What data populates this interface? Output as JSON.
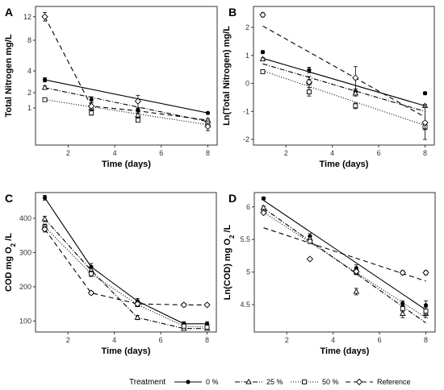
{
  "legend": {
    "title": "Treatment",
    "entries": [
      {
        "key": "0",
        "label": "0 %"
      },
      {
        "key": "25",
        "label": "25 %"
      },
      {
        "key": "50",
        "label": "50 %"
      },
      {
        "key": "ref",
        "label": "Reference"
      }
    ]
  },
  "styles": {
    "0": {
      "dash": "",
      "marker": "circle"
    },
    "25": {
      "dash": "6,2,1,2",
      "marker": "triangle"
    },
    "50": {
      "dash": "1,2",
      "marker": "square"
    },
    "ref": {
      "dash": "6,4",
      "marker": "diamond"
    }
  },
  "chart_data": [
    {
      "panel": "A",
      "type": "line",
      "xlabel": "Time (days)",
      "ylabel": "Total Nitrogen mg/L",
      "ylabel_sub": "",
      "ylabel_after": "",
      "ylabel_scale": "sqrt",
      "x_ticks": [
        2,
        4,
        6,
        8
      ],
      "y_ticks": [
        1,
        2,
        4,
        8,
        12
      ],
      "xlim": [
        0.6,
        8.4
      ],
      "ylim": [
        0,
        14
      ],
      "series": [
        {
          "key": "0",
          "points": [
            [
              1,
              3.1,
              0.2
            ],
            [
              3,
              1.5,
              0.2
            ],
            [
              5,
              0.9,
              0.1
            ],
            [
              8,
              0.75,
              0.05
            ]
          ],
          "fit": [
            [
              1,
              3.1
            ],
            [
              8,
              0.75
            ]
          ]
        },
        {
          "key": "25",
          "points": [
            [
              1,
              2.4,
              0.15
            ],
            [
              3,
              1.0,
              0.1
            ],
            [
              5,
              0.65,
              0.1
            ],
            [
              8,
              0.45,
              0.05
            ]
          ],
          "fit": [
            [
              1,
              2.4
            ],
            [
              8,
              0.4
            ]
          ]
        },
        {
          "key": "50",
          "points": [
            [
              1,
              1.5,
              0.1
            ],
            [
              3,
              0.75,
              0.1
            ],
            [
              5,
              0.45,
              0.05
            ],
            [
              8,
              0.35,
              0.05
            ]
          ],
          "fit": [
            [
              1,
              1.5
            ],
            [
              8,
              0.3
            ]
          ]
        },
        {
          "key": "ref",
          "points": [
            [
              1,
              12,
              0.8
            ],
            [
              3,
              1.1,
              0.2
            ],
            [
              5,
              1.4,
              0.4
            ],
            [
              8,
              0.25,
              0.1
            ]
          ],
          "fit": [
            [
              1,
              12
            ],
            [
              3,
              1.1
            ],
            [
              5,
              0.85
            ],
            [
              8,
              0.45
            ]
          ]
        }
      ]
    },
    {
      "panel": "B",
      "type": "line",
      "xlabel": "Time (days)",
      "ylabel": "Ln(Total Nitrogen) mg/L",
      "ylabel_sub": "",
      "ylabel_after": "",
      "ylabel_scale": "linear",
      "x_ticks": [
        2,
        4,
        6,
        8
      ],
      "y_ticks": [
        -2,
        -1,
        0,
        1,
        2
      ],
      "xlim": [
        0.6,
        8.4
      ],
      "ylim": [
        -2.2,
        2.75
      ],
      "series": [
        {
          "key": "0",
          "points": [
            [
              1,
              1.12,
              0.05
            ],
            [
              3,
              0.48,
              0.1
            ],
            [
              5,
              -0.3,
              0.1
            ],
            [
              8,
              -0.35,
              0.05
            ]
          ],
          "fit": [
            [
              1,
              0.9
            ],
            [
              8,
              -0.8
            ]
          ]
        },
        {
          "key": "25",
          "points": [
            [
              1,
              0.87,
              0.05
            ],
            [
              3,
              0.05,
              0.1
            ],
            [
              5,
              -0.35,
              0.1
            ],
            [
              8,
              -0.8,
              0.05
            ]
          ],
          "fit": [
            [
              1,
              0.7
            ],
            [
              8,
              -1.0
            ]
          ]
        },
        {
          "key": "50",
          "points": [
            [
              1,
              0.42,
              0.05
            ],
            [
              3,
              -0.3,
              0.15
            ],
            [
              5,
              -0.8,
              0.1
            ],
            [
              8,
              -1.55,
              0.1
            ]
          ],
          "fit": [
            [
              1,
              0.45
            ],
            [
              8,
              -1.5
            ]
          ]
        },
        {
          "key": "ref",
          "points": [
            [
              1,
              2.45,
              0.07
            ],
            [
              3,
              0.05,
              0.2
            ],
            [
              5,
              0.2,
              0.4
            ],
            [
              8,
              -1.4,
              0.6
            ]
          ],
          "fit": [
            [
              1,
              2.05
            ],
            [
              8,
              -1.2
            ]
          ]
        }
      ]
    },
    {
      "panel": "C",
      "type": "line",
      "xlabel": "Time (days)",
      "ylabel": "COD mg O",
      "ylabel_sub": "2",
      "ylabel_after": "/L",
      "ylabel_scale": "linear",
      "x_ticks": [
        2,
        4,
        6,
        8
      ],
      "y_ticks": [
        100,
        200,
        300,
        400
      ],
      "xlim": [
        0.6,
        8.4
      ],
      "ylim": [
        68,
        475
      ],
      "series": [
        {
          "key": "0",
          "points": [
            [
              1,
              460,
              7
            ],
            [
              3,
              258,
              10
            ],
            [
              5,
              158,
              8
            ],
            [
              7,
              92,
              6
            ],
            [
              8,
              92,
              6
            ]
          ],
          "fit": [
            [
              1,
              460
            ],
            [
              3,
              258
            ],
            [
              5,
              158
            ],
            [
              7,
              92
            ],
            [
              8,
              92
            ]
          ]
        },
        {
          "key": "25",
          "points": [
            [
              1,
              398,
              8
            ],
            [
              3,
              248,
              10
            ],
            [
              5,
              110,
              6
            ],
            [
              7,
              78,
              5
            ],
            [
              8,
              78,
              5
            ]
          ],
          "fit": [
            [
              1,
              398
            ],
            [
              3,
              248
            ],
            [
              5,
              110
            ],
            [
              7,
              78
            ],
            [
              8,
              78
            ]
          ]
        },
        {
          "key": "50",
          "points": [
            [
              1,
              375,
              8
            ],
            [
              3,
              238,
              8
            ],
            [
              5,
              148,
              6
            ],
            [
              7,
              85,
              5
            ],
            [
              8,
              82,
              5
            ]
          ],
          "fit": [
            [
              1,
              375
            ],
            [
              3,
              238
            ],
            [
              5,
              148
            ],
            [
              7,
              85
            ],
            [
              8,
              82
            ]
          ]
        },
        {
          "key": "ref",
          "points": [
            [
              1,
              368,
              8
            ],
            [
              3,
              182,
              5
            ],
            [
              5,
              150,
              5
            ],
            [
              7,
              147,
              5
            ],
            [
              8,
              147,
              4
            ]
          ],
          "fit": [
            [
              1,
              368
            ],
            [
              3,
              182
            ],
            [
              5,
              150
            ],
            [
              7,
              147
            ],
            [
              8,
              147
            ]
          ]
        }
      ]
    },
    {
      "panel": "D",
      "type": "line",
      "xlabel": "Time (days)",
      "ylabel": "Ln(COD) mg O",
      "ylabel_sub": "2",
      "ylabel_after": "/L",
      "ylabel_scale": "linear",
      "x_ticks": [
        2,
        4,
        6,
        8
      ],
      "y_ticks": [
        4.5,
        5.0,
        5.5,
        6.0
      ],
      "xlim": [
        0.6,
        8.4
      ],
      "ylim": [
        4.08,
        6.22
      ],
      "series": [
        {
          "key": "0",
          "points": [
            [
              1,
              6.13,
              0.02
            ],
            [
              3,
              5.55,
              0.04
            ],
            [
              5,
              5.06,
              0.05
            ],
            [
              7,
              4.52,
              0.04
            ],
            [
              8,
              4.49,
              0.07
            ]
          ],
          "fit": [
            [
              1,
              6.1
            ],
            [
              8,
              4.42
            ]
          ]
        },
        {
          "key": "25",
          "points": [
            [
              1,
              5.99,
              0.02
            ],
            [
              3,
              5.51,
              0.04
            ],
            [
              5,
              4.7,
              0.05
            ],
            [
              7,
              4.36,
              0.06
            ],
            [
              8,
              4.36,
              0.06
            ]
          ],
          "fit": [
            [
              1,
              5.98
            ],
            [
              8,
              4.22
            ]
          ]
        },
        {
          "key": "50",
          "points": [
            [
              1,
              5.93,
              0.02
            ],
            [
              3,
              5.47,
              0.03
            ],
            [
              5,
              5.0,
              0.04
            ],
            [
              7,
              4.44,
              0.05
            ],
            [
              8,
              4.4,
              0.06
            ]
          ],
          "fit": [
            [
              1,
              5.92
            ],
            [
              8,
              4.3
            ]
          ]
        },
        {
          "key": "ref",
          "points": [
            [
              1,
              5.91,
              0.02
            ],
            [
              3,
              5.2,
              0.02
            ],
            [
              5,
              5.01,
              0.03
            ],
            [
              7,
              4.99,
              0.03
            ],
            [
              8,
              4.99,
              0.03
            ]
          ],
          "fit": [
            [
              1,
              5.68
            ],
            [
              8,
              4.86
            ]
          ]
        }
      ]
    }
  ]
}
